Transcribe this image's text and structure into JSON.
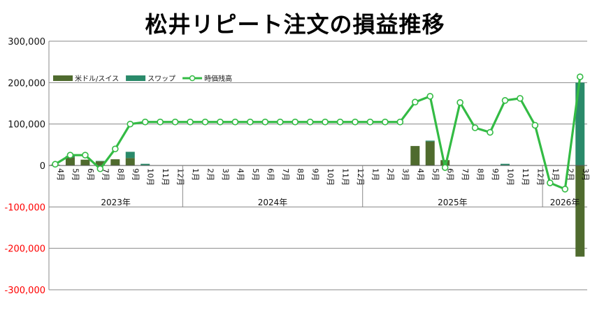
{
  "chart_data": {
    "type": "bar+line",
    "title": "松井リピート注文の損益推移",
    "y_ticks": [
      "300,000",
      "200,000",
      "100,000",
      "0",
      "-100,000",
      "-200,000",
      "-300,000"
    ],
    "ylim": [
      -300000,
      300000
    ],
    "negative_tick_color": "#ff0000",
    "legend_position": "top-left",
    "months": [
      "4月",
      "5月",
      "6月",
      "7月",
      "8月",
      "9月",
      "10月",
      "11月",
      "12月",
      "1月",
      "2月",
      "3月",
      "4月",
      "5月",
      "6月",
      "7月",
      "8月",
      "9月",
      "10月",
      "11月",
      "12月",
      "1月",
      "2月",
      "3月",
      "4月",
      "5月",
      "6月",
      "7月",
      "8月",
      "9月",
      "10月",
      "11月",
      "12月",
      "1月",
      "2月",
      "3月"
    ],
    "years": [
      {
        "label": "2023年",
        "start": 0,
        "end": 8
      },
      {
        "label": "2024年",
        "start": 9,
        "end": 20
      },
      {
        "label": "2025年",
        "start": 21,
        "end": 32
      },
      {
        "label": "2026年",
        "start": 33,
        "end": 35
      }
    ],
    "series": [
      {
        "name": "米ドル/スイス",
        "kind": "bar",
        "color": "#4f6b2e",
        "values": [
          2000,
          20000,
          14000,
          10000,
          15000,
          18000,
          0,
          0,
          0,
          0,
          0,
          0,
          0,
          0,
          0,
          0,
          0,
          0,
          0,
          0,
          0,
          0,
          0,
          0,
          47000,
          58000,
          13000,
          0,
          0,
          0,
          0,
          0,
          0,
          0,
          0,
          -220000
        ]
      },
      {
        "name": "スワップ",
        "kind": "bar",
        "color": "#2a8a6a",
        "values": [
          0,
          3000,
          0,
          1000,
          0,
          15000,
          4000,
          0,
          0,
          0,
          0,
          0,
          0,
          0,
          0,
          0,
          0,
          0,
          0,
          0,
          0,
          0,
          0,
          0,
          0,
          2000,
          0,
          0,
          0,
          0,
          4000,
          0,
          0,
          0,
          0,
          200000
        ]
      },
      {
        "name": "時価残高",
        "kind": "line",
        "color": "#33bb44",
        "values": [
          3000,
          25000,
          25000,
          -8000,
          40000,
          100000,
          105000,
          105000,
          105000,
          105000,
          105000,
          105000,
          105000,
          105000,
          105000,
          105000,
          105000,
          105000,
          105000,
          105000,
          105000,
          105000,
          105000,
          105000,
          153000,
          167000,
          -5000,
          152000,
          91000,
          80000,
          157000,
          162000,
          97000,
          -42000,
          -57000,
          214000
        ]
      }
    ]
  }
}
